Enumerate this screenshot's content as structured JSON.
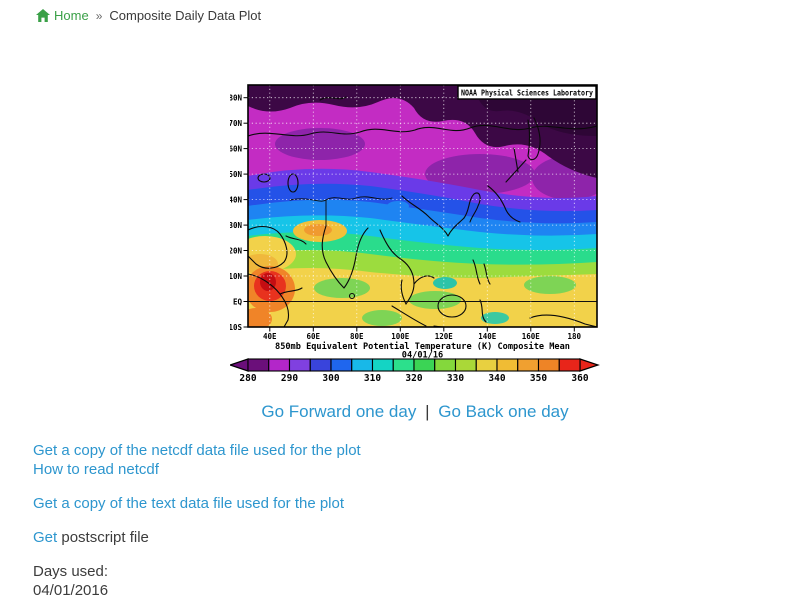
{
  "breadcrumb": {
    "home_label": "Home",
    "separator": "»",
    "current": "Composite Daily Data Plot"
  },
  "plot": {
    "credit": "NOAA Physical Sciences Laboratory",
    "caption": "850mb Equivalent Potential Temperature (K) Composite Mean",
    "date": "04/01/16",
    "lat_labels": [
      "80N",
      "70N",
      "60N",
      "50N",
      "40N",
      "30N",
      "20N",
      "10N",
      "EQ",
      "10S"
    ],
    "lon_labels": [
      "40E",
      "60E",
      "80E",
      "100E",
      "120E",
      "140E",
      "160E",
      "180"
    ],
    "colorbar": {
      "tick_labels": [
        "280",
        "290",
        "300",
        "310",
        "320",
        "330",
        "340",
        "350",
        "360"
      ],
      "segment_colors": [
        "#6b0f7a",
        "#b326c9",
        "#8040e0",
        "#3944dc",
        "#1f66ee",
        "#18b8e8",
        "#14d4c4",
        "#2ce08c",
        "#3bd455",
        "#84d83c",
        "#aad838",
        "#e8d040",
        "#f0bc34",
        "#f0a030",
        "#ee8426",
        "#e8251a"
      ],
      "below_min_color": "#6b0f7a",
      "above_max_color": "#e8251a"
    }
  },
  "day_nav": {
    "forward_label": "Go Forward one day",
    "separator": "|",
    "back_label": "Go Back one day"
  },
  "file_links": {
    "netcdf": "Get a copy of the netcdf data file used for the plot",
    "how_to_read": "How to read netcdf",
    "text_file": "Get a copy of the text data file used for the plot",
    "postscript_link": "Get",
    "postscript_suffix": " postscript file"
  },
  "footer": {
    "days_used_label": "Days used:",
    "date_used": "04/01/2016"
  },
  "colors": {
    "link_blue": "#2d96ce",
    "home_green": "#3aa047",
    "body_text": "#3c3c3c"
  }
}
